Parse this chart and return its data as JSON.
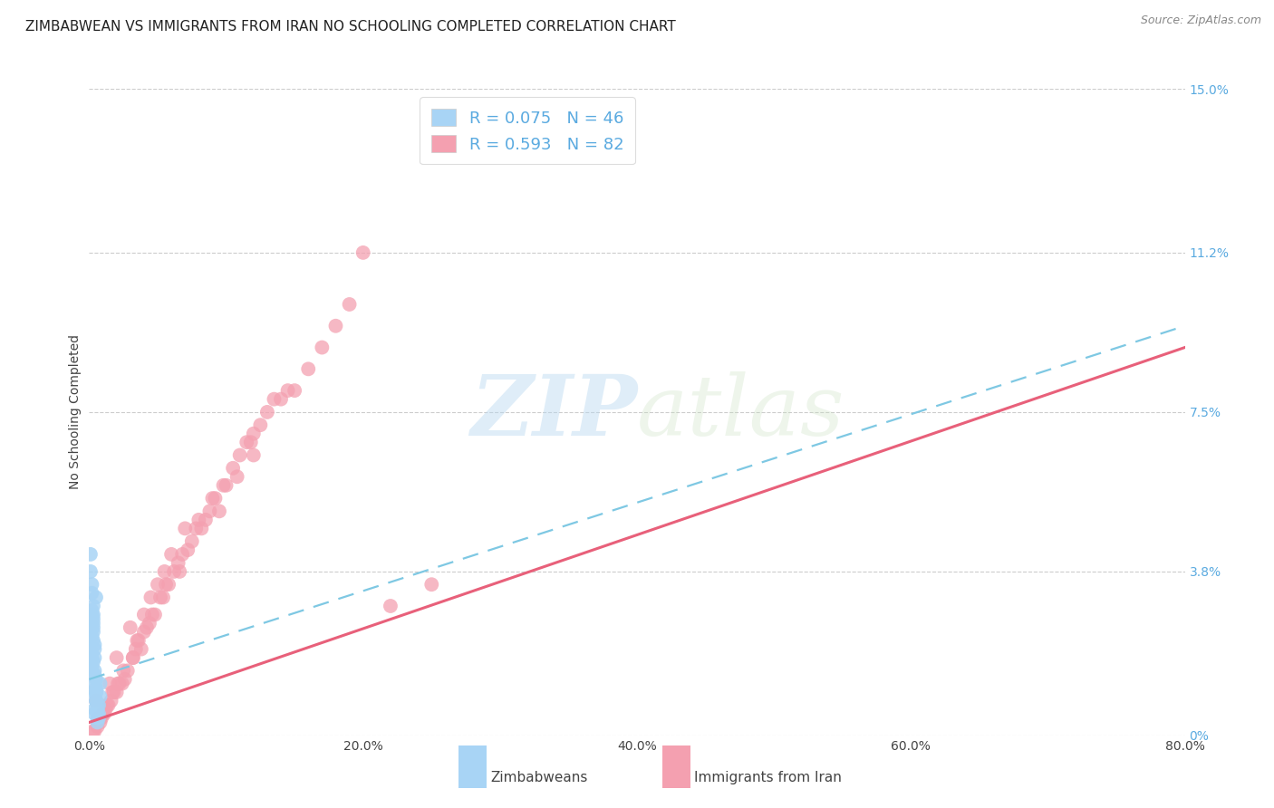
{
  "title": "ZIMBABWEAN VS IMMIGRANTS FROM IRAN NO SCHOOLING COMPLETED CORRELATION CHART",
  "source": "Source: ZipAtlas.com",
  "ylabel": "No Schooling Completed",
  "x_tick_labels": [
    "0.0%",
    "20.0%",
    "40.0%",
    "60.0%",
    "80.0%"
  ],
  "x_tick_vals": [
    0.0,
    20.0,
    40.0,
    60.0,
    80.0
  ],
  "y_right_labels": [
    "15.0%",
    "11.2%",
    "7.5%",
    "3.8%",
    "0%"
  ],
  "y_right_vals": [
    15.0,
    11.2,
    7.5,
    3.8,
    0.0
  ],
  "xlim": [
    0.0,
    80.0
  ],
  "ylim": [
    0.0,
    15.0
  ],
  "legend_labels": [
    "Zimbabweans",
    "Immigrants from Iran"
  ],
  "legend_R": [
    "0.075",
    "0.593"
  ],
  "legend_N": [
    "46",
    "82"
  ],
  "blue_color": "#A8D4F5",
  "pink_color": "#F4A0B0",
  "blue_line_color": "#7EC8E3",
  "pink_line_color": "#E8607A",
  "watermark_zip": "ZIP",
  "watermark_atlas": "atlas",
  "title_fontsize": 11,
  "axis_label_fontsize": 10,
  "tick_fontsize": 10,
  "blue_scatter_x": [
    0.2,
    0.4,
    0.3,
    0.5,
    0.1,
    0.6,
    0.8,
    0.3,
    0.2,
    0.4,
    0.5,
    0.7,
    0.2,
    0.3,
    0.6,
    0.4,
    0.1,
    0.5,
    0.3,
    0.2,
    0.8,
    0.4,
    0.6,
    0.3,
    0.5,
    0.2,
    0.7,
    0.4,
    0.3,
    0.6,
    0.2,
    0.5,
    0.4,
    0.3,
    0.6,
    0.2,
    0.4,
    0.5,
    0.3,
    0.7,
    0.2,
    0.4,
    0.6,
    0.3,
    0.5,
    0.2
  ],
  "blue_scatter_y": [
    1.5,
    0.5,
    2.2,
    0.8,
    3.8,
    0.3,
    1.2,
    2.5,
    1.8,
    0.6,
    3.2,
    0.4,
    2.8,
    1.0,
    0.7,
    2.0,
    4.2,
    1.3,
    2.6,
    1.6,
    0.9,
    1.8,
    0.5,
    3.0,
    1.1,
    2.3,
    0.7,
    1.5,
    2.8,
    0.4,
    3.5,
    1.0,
    2.1,
    1.7,
    0.6,
    2.9,
    1.2,
    0.8,
    2.4,
    0.5,
    3.3,
    1.4,
    0.6,
    2.7,
    1.0,
    1.9
  ],
  "blue_trend_x0": 0.0,
  "blue_trend_y0": 1.3,
  "blue_trend_x1": 80.0,
  "blue_trend_y1": 9.5,
  "pink_scatter_x": [
    0.5,
    1.5,
    3.0,
    5.0,
    8.0,
    12.0,
    2.0,
    6.0,
    10.0,
    4.0,
    15.0,
    7.0,
    1.0,
    9.0,
    3.5,
    18.0,
    5.5,
    2.5,
    11.0,
    4.5,
    0.8,
    7.5,
    1.8,
    6.5,
    3.2,
    20.0,
    9.5,
    2.2,
    13.0,
    5.8,
    1.2,
    8.5,
    4.2,
    16.0,
    0.6,
    11.5,
    3.8,
    6.8,
    2.8,
    14.0,
    0.4,
    10.5,
    4.8,
    1.6,
    7.8,
    22.0,
    5.2,
    2.6,
    12.5,
    4.4,
    0.7,
    9.2,
    3.4,
    17.0,
    1.4,
    8.2,
    5.6,
    2.0,
    13.5,
    6.2,
    1.1,
    10.8,
    3.6,
    19.0,
    0.9,
    11.8,
    4.6,
    7.2,
    2.4,
    14.5,
    0.3,
    9.8,
    5.4,
    1.7,
    8.8,
    25.0,
    3.2,
    6.6,
    2.1,
    12.0,
    4.0,
    1.3
  ],
  "pink_scatter_y": [
    0.8,
    1.2,
    2.5,
    3.5,
    5.0,
    7.0,
    1.8,
    4.2,
    5.8,
    2.8,
    8.0,
    4.8,
    0.5,
    5.5,
    2.2,
    9.5,
    3.8,
    1.5,
    6.5,
    3.2,
    0.3,
    4.5,
    1.0,
    4.0,
    1.8,
    11.2,
    5.2,
    1.2,
    7.5,
    3.5,
    0.6,
    5.0,
    2.5,
    8.5,
    0.2,
    6.8,
    2.0,
    4.2,
    1.5,
    7.8,
    0.1,
    6.2,
    2.8,
    0.8,
    4.8,
    3.0,
    3.2,
    1.3,
    7.2,
    2.6,
    0.4,
    5.5,
    2.0,
    9.0,
    0.7,
    4.8,
    3.5,
    1.0,
    7.8,
    3.8,
    0.5,
    6.0,
    2.2,
    10.0,
    0.4,
    6.8,
    2.8,
    4.3,
    1.2,
    8.0,
    0.1,
    5.8,
    3.2,
    1.0,
    5.2,
    3.5,
    1.8,
    3.8,
    1.2,
    6.5,
    2.4,
    0.7
  ],
  "pink_trend_x0": 0.0,
  "pink_trend_y0": 0.3,
  "pink_trend_x1": 80.0,
  "pink_trend_y1": 9.0
}
